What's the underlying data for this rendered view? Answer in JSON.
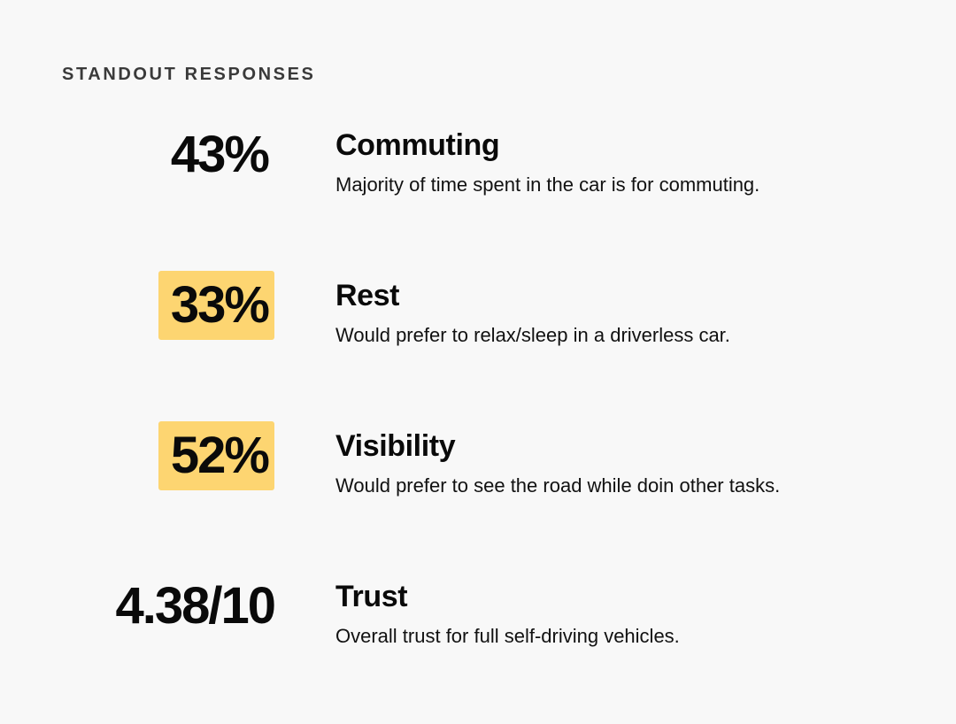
{
  "section_title": "STANDOUT RESPONSES",
  "highlight_color": "#fdd571",
  "responses": [
    {
      "stat": "43%",
      "heading": "Commuting",
      "description": "Majority of time spent in the car is for commuting.",
      "highlighted": false
    },
    {
      "stat": "33%",
      "heading": "Rest",
      "description": "Would prefer to relax/sleep in a driverless car.",
      "highlighted": true
    },
    {
      "stat": "52%",
      "heading": "Visibility",
      "description": "Would prefer to see the road while doin other tasks.",
      "highlighted": true
    },
    {
      "stat": "4.38/10",
      "heading": "Trust",
      "description": "Overall trust for full self-driving vehicles.",
      "highlighted": false
    }
  ]
}
